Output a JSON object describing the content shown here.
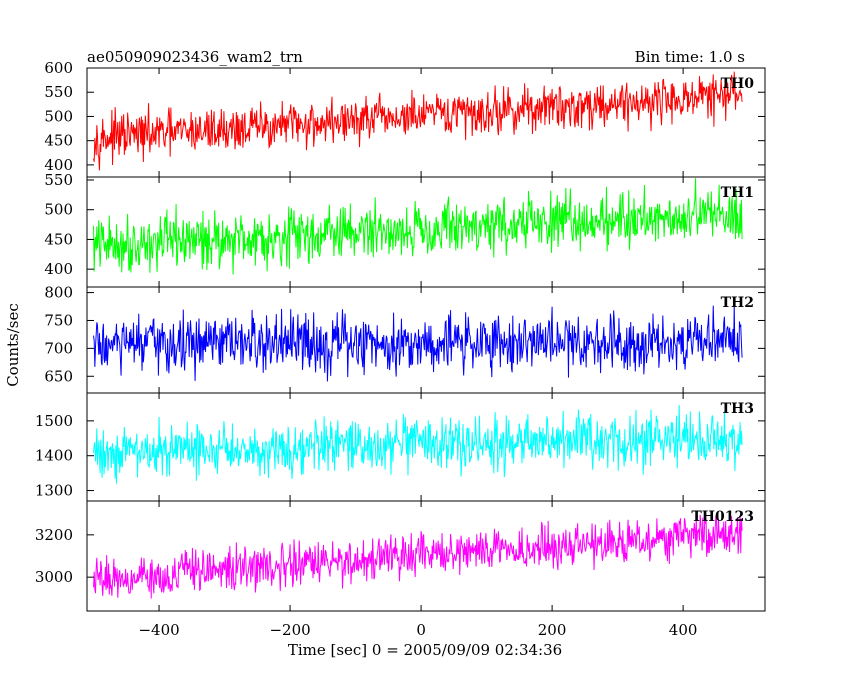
{
  "header": {
    "title": "ae050909023436_wam2_trn",
    "bin_time": "Bin time: 1.0 s"
  },
  "axes": {
    "ylabel": "Counts/sec",
    "xlabel": "Time [sec] 0 = 2005/09/09 02:34:36"
  },
  "chart_data": {
    "type": "line",
    "title": "ae050909023436_wam2_trn",
    "xlabel": "Time [sec] 0 = 2005/09/09 02:34:36",
    "ylabel": "Counts/sec",
    "xlim": [
      -510,
      525
    ],
    "xticks": [
      -400,
      -200,
      0,
      200,
      400
    ],
    "xtick_labels": [
      "−400",
      "−200",
      "0",
      "200",
      "400"
    ],
    "x_start": -500,
    "x_end": 490,
    "bin_time_s": 1.0,
    "grid": false,
    "panels": [
      {
        "name": "TH0",
        "color": "#ff0000",
        "ylim": [
          375,
          600
        ],
        "yticks": [
          400,
          450,
          500,
          550,
          600
        ],
        "trend_start": 455,
        "trend_end": 545,
        "noise_amplitude": 40,
        "approx_range": [
          360,
          600
        ]
      },
      {
        "name": "TH1",
        "color": "#00ff00",
        "ylim": [
          370,
          555
        ],
        "yticks": [
          400,
          450,
          500,
          550
        ],
        "trend_start": 440,
        "trend_end": 495,
        "noise_amplitude": 40,
        "approx_range": [
          375,
          555
        ]
      },
      {
        "name": "TH2",
        "color": "#0000ff",
        "ylim": [
          620,
          810
        ],
        "yticks": [
          650,
          700,
          750,
          800
        ],
        "trend_start": 705,
        "trend_end": 715,
        "noise_amplitude": 45,
        "approx_range": [
          630,
          810
        ]
      },
      {
        "name": "TH3",
        "color": "#00ffff",
        "ylim": [
          1270,
          1580
        ],
        "yticks": [
          1300,
          1400,
          1500
        ],
        "trend_start": 1410,
        "trend_end": 1450,
        "noise_amplitude": 65,
        "approx_range": [
          1275,
          1575
        ]
      },
      {
        "name": "TH0123",
        "color": "#ff00ff",
        "ylim": [
          2840,
          3360
        ],
        "yticks": [
          3000,
          3200
        ],
        "trend_start": 2990,
        "trend_end": 3210,
        "noise_amplitude": 85,
        "approx_range": [
          2860,
          3340
        ]
      }
    ]
  }
}
